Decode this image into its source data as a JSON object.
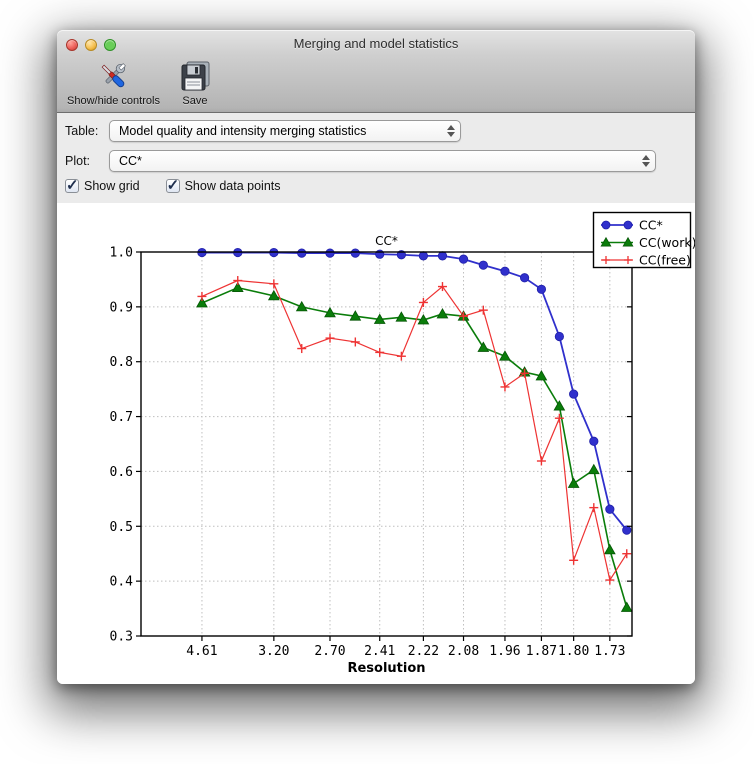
{
  "window": {
    "title": "Merging and model statistics"
  },
  "toolbar": {
    "buttons": [
      {
        "label": "Show/hide controls",
        "icon": "tools-icon"
      },
      {
        "label": "Save",
        "icon": "floppy-disk-icon"
      }
    ]
  },
  "controls": {
    "table_label": "Table:",
    "table_value": "Model quality and intensity merging statistics",
    "plot_label": "Plot:",
    "plot_value": "CC*",
    "checkboxes": [
      {
        "label": "Show grid",
        "checked": true
      },
      {
        "label": "Show data points",
        "checked": true
      }
    ]
  },
  "chart_data": {
    "type": "line",
    "title": "CC*",
    "xlabel": "Resolution",
    "ylabel": "",
    "grid": true,
    "legend_position": "upper right",
    "x_axis_scale": "1/d^2",
    "xlim_d": [
      15.5,
      1.691
    ],
    "ylim": [
      0.3,
      1.0
    ],
    "y_ticks": [
      1.0,
      0.9,
      0.8,
      0.7,
      0.6,
      0.5,
      0.4,
      0.3
    ],
    "y_tick_labels": [
      "1.0",
      "0.9",
      "0.8",
      "0.7",
      "0.6",
      "0.5",
      "0.4",
      "0.3"
    ],
    "x_tick_d": [
      4.61,
      3.2,
      2.7,
      2.41,
      2.22,
      2.08,
      1.96,
      1.87,
      1.8,
      1.73
    ],
    "x_tick_labels": [
      "4.61",
      "3.20",
      "2.70",
      "2.41",
      "2.22",
      "2.08",
      "1.96",
      "1.87",
      "1.80",
      "1.73"
    ],
    "x_bins_d": [
      4.61,
      3.72,
      3.2,
      2.92,
      2.7,
      2.54,
      2.41,
      2.31,
      2.22,
      2.15,
      2.08,
      2.02,
      1.96,
      1.91,
      1.87,
      1.83,
      1.8,
      1.76,
      1.73,
      1.7
    ],
    "series": [
      {
        "name": "CC*",
        "color": "#3030cc",
        "edge": "#2020a8",
        "marker": "circle",
        "line_width": 1.8,
        "values": [
          0.999,
          0.999,
          0.999,
          0.998,
          0.998,
          0.998,
          0.996,
          0.995,
          0.993,
          0.993,
          0.987,
          0.976,
          0.965,
          0.953,
          0.932,
          0.846,
          0.741,
          0.655,
          0.531,
          0.493
        ]
      },
      {
        "name": "CC(work)",
        "color": "#0a7d0a",
        "edge": "#055505",
        "marker": "triangle",
        "line_width": 1.6,
        "values": [
          0.907,
          0.935,
          0.92,
          0.9,
          0.889,
          0.883,
          0.877,
          0.881,
          0.876,
          0.887,
          0.883,
          0.826,
          0.81,
          0.781,
          0.774,
          0.719,
          0.578,
          0.603,
          0.457,
          0.352
        ]
      },
      {
        "name": "CC(free)",
        "color": "#ee3333",
        "edge": "#ee3333",
        "marker": "plus",
        "line_width": 1.2,
        "values": [
          0.919,
          0.948,
          0.942,
          0.824,
          0.843,
          0.836,
          0.817,
          0.81,
          0.908,
          0.937,
          0.883,
          0.894,
          0.754,
          0.779,
          0.619,
          0.697,
          0.438,
          0.534,
          0.402,
          0.45
        ]
      }
    ]
  }
}
